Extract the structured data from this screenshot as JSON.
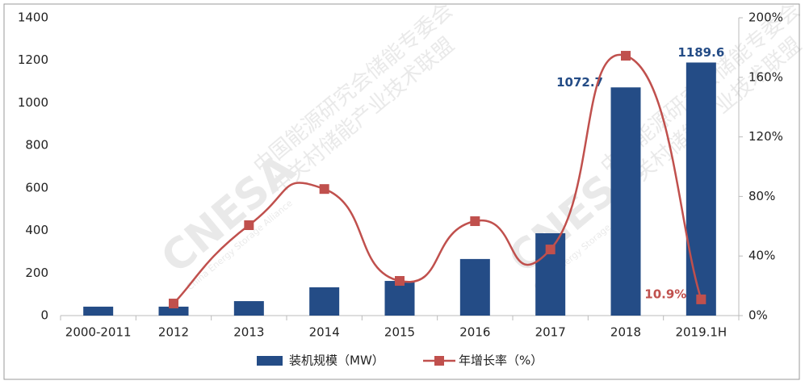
{
  "chart_data": {
    "type": "bar-line",
    "categories": [
      "2000-2011",
      "2012",
      "2013",
      "2014",
      "2015",
      "2016",
      "2017",
      "2018",
      "2019.1H"
    ],
    "series": [
      {
        "name": "装机规模（MW）",
        "type": "bar",
        "color": "#244c86",
        "values": [
          42,
          42,
          68,
          133,
          163,
          266,
          387,
          1072.7,
          1189.6
        ],
        "value_labels": [
          null,
          null,
          null,
          null,
          null,
          null,
          null,
          "1072.7",
          "1189.6"
        ]
      },
      {
        "name": "年增长率（%）",
        "type": "line",
        "axis": "y2",
        "color": "#c0504d",
        "values": [
          null,
          8.1,
          60.7,
          85,
          23.3,
          63.4,
          44.4,
          174.5,
          10.9
        ],
        "value_labels": [
          null,
          null,
          null,
          null,
          null,
          null,
          null,
          null,
          "10.9%"
        ]
      }
    ],
    "ylim": [
      0,
      1400
    ],
    "yticks": [
      0,
      200,
      400,
      600,
      800,
      1000,
      1200,
      1400
    ],
    "y2lim": [
      0,
      200
    ],
    "y2ticks": [
      {
        "value": 0,
        "label": "0%"
      },
      {
        "value": 40,
        "label": "40%"
      },
      {
        "value": 80,
        "label": "80%"
      },
      {
        "value": 120,
        "label": "120%"
      },
      {
        "value": 160,
        "label": "160%"
      },
      {
        "value": 200,
        "label": "200%"
      }
    ],
    "legend": "bottom",
    "watermark": [
      "CNESA",
      "中国能源研究会储能专委会",
      "中关村储能产业技术联盟",
      "China Energy Storage Alliance"
    ]
  }
}
